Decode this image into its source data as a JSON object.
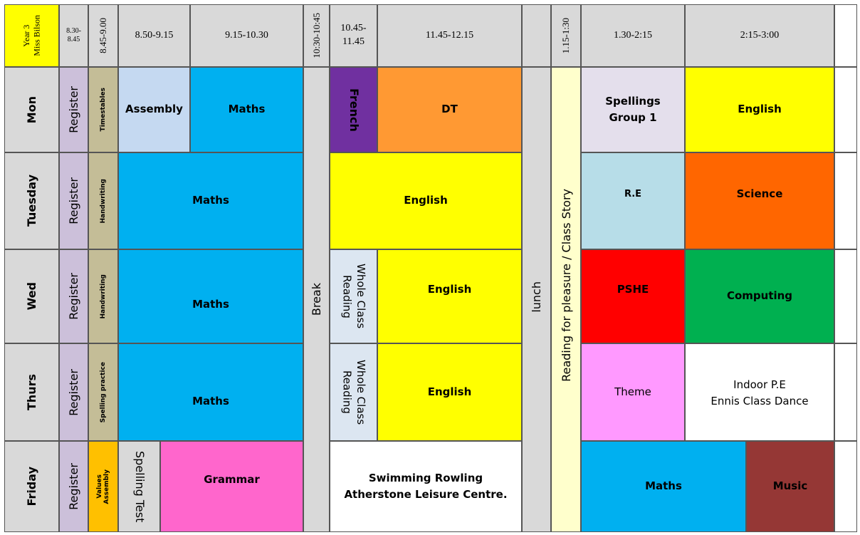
{
  "colors": {
    "grey": "#d9d9d9",
    "yellow": "#ffff00",
    "lilac": "#ccc0da",
    "tan": "#c4bd97",
    "light_blue": "#c5d9f1",
    "cyan": "#00b0f0",
    "purple": "#7030a0",
    "orange": "#ff9933",
    "lavender": "#e4dfec",
    "pale_blue": "#b7dde8",
    "dark_orange": "#ff6600",
    "pale_steel": "#dce6f1",
    "red": "#ff0000",
    "green": "#00b050",
    "pink": "#ff99ff",
    "amber": "#ffc000",
    "magenta": "#ff66cc",
    "maroon": "#953735",
    "cream": "#ffffcc",
    "white": "#ffffff"
  },
  "header": {
    "class_label": "Year 3\nMiss Bilson",
    "t0830": "8.30-\n8.45",
    "t0845": "8.45-9.00",
    "t0850": "8.50-9.15",
    "t0915": "9.15-10.30",
    "t1030": "10:30-10:45",
    "t1045": "10.45-\n11.45",
    "t1145": "11.45-12.15",
    "t1115": "1.15-1:30",
    "t0130": "1.30-2:15",
    "t0215": "2:15-3:00"
  },
  "days": {
    "mon": "Mon",
    "tue": "Tuesday",
    "wed": "Wed",
    "thu": "Thurs",
    "fri": "Friday"
  },
  "register": "Register",
  "early": {
    "mon": "Timestables",
    "tue": "Handwriting",
    "wed": "Handwriting",
    "thu": "Spelling practice",
    "fri": "Values\nAssembly"
  },
  "breaks": {
    "break": "Break",
    "lunch": "lunch",
    "reading": "Reading for pleasure / Class Story"
  },
  "subjects": {
    "mon_assembly": "Assembly",
    "mon_maths": "Maths",
    "mon_french": "French",
    "mon_dt": "DT",
    "mon_spellings": "Spellings\nGroup 1",
    "mon_english": "English",
    "tue_maths": "Maths",
    "tue_english": "English",
    "tue_re": "R.E",
    "tue_science": "Science",
    "wed_maths": "Maths",
    "wed_reading": "Whole Class\nReading",
    "wed_english": "English",
    "wed_pshe": "PSHE",
    "wed_computing": "Computing",
    "thu_maths": "Maths",
    "thu_reading": "Whole Class\nReading",
    "thu_english": "English",
    "thu_theme": "Theme",
    "thu_pe": "Indoor P.E\nEnnis Class Dance",
    "fri_spelling": "Spelling Test",
    "fri_grammar": "Grammar",
    "fri_swimming": "Swimming Rowling\nAtherstone Leisure Centre.",
    "fri_maths": "Maths",
    "fri_music": "Music"
  }
}
